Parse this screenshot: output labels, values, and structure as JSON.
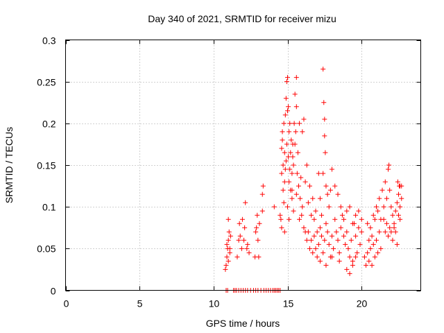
{
  "chart_data": {
    "type": "scatter",
    "title": "Day 340 of 2021, SRMTID for receiver mizu",
    "xlabel": "GPS time / hours",
    "ylabel": "SRMTID / TECUs",
    "xlim": [
      0,
      24
    ],
    "ylim": [
      0,
      0.3
    ],
    "xticks": [
      0,
      5,
      10,
      15,
      20
    ],
    "xtick_labels": [
      "0",
      "5",
      "10",
      "15",
      "20"
    ],
    "yticks": [
      0,
      0.05,
      0.1,
      0.15,
      0.2,
      0.25,
      0.3
    ],
    "ytick_labels": [
      "0",
      "0.05",
      "0.1",
      "0.15",
      "0.2",
      "0.25",
      "0.3"
    ],
    "grid": true,
    "marker": "+",
    "color": "#ff0000",
    "series": [
      {
        "name": "SRMTID",
        "points": [
          [
            10.8,
            0.025
          ],
          [
            10.85,
            0.03
          ],
          [
            10.9,
            0.04
          ],
          [
            10.95,
            0.05
          ],
          [
            11.0,
            0.06
          ],
          [
            11.0,
            0.085
          ],
          [
            11.05,
            0.07
          ],
          [
            11.1,
            0.045
          ],
          [
            11.15,
            0.065
          ],
          [
            11.0,
            0.035
          ],
          [
            10.9,
            0.055
          ],
          [
            11.1,
            0.05
          ],
          [
            10.85,
            0.0
          ],
          [
            10.95,
            0.0
          ],
          [
            11.35,
            0.0
          ],
          [
            11.45,
            0.0
          ],
          [
            11.55,
            0.0
          ],
          [
            11.7,
            0.0
          ],
          [
            11.85,
            0.0
          ],
          [
            12.0,
            0.0
          ],
          [
            12.15,
            0.0
          ],
          [
            12.3,
            0.0
          ],
          [
            12.5,
            0.0
          ],
          [
            12.7,
            0.0
          ],
          [
            12.85,
            0.0
          ],
          [
            13.0,
            0.0
          ],
          [
            13.2,
            0.0
          ],
          [
            13.4,
            0.0
          ],
          [
            13.55,
            0.0
          ],
          [
            13.7,
            0.0
          ],
          [
            13.85,
            0.0
          ],
          [
            14.0,
            0.0
          ],
          [
            14.1,
            0.0
          ],
          [
            14.2,
            0.0
          ],
          [
            14.3,
            0.0
          ],
          [
            14.4,
            0.0
          ],
          [
            14.5,
            0.0
          ],
          [
            11.6,
            0.04
          ],
          [
            11.7,
            0.06
          ],
          [
            11.75,
            0.08
          ],
          [
            11.8,
            0.065
          ],
          [
            11.9,
            0.05
          ],
          [
            11.95,
            0.085
          ],
          [
            12.05,
            0.06
          ],
          [
            12.1,
            0.075
          ],
          [
            12.15,
            0.105
          ],
          [
            12.25,
            0.05
          ],
          [
            12.3,
            0.055
          ],
          [
            12.4,
            0.045
          ],
          [
            12.8,
            0.04
          ],
          [
            12.85,
            0.07
          ],
          [
            12.9,
            0.075
          ],
          [
            12.95,
            0.09
          ],
          [
            13.0,
            0.06
          ],
          [
            13.05,
            0.04
          ],
          [
            13.1,
            0.08
          ],
          [
            13.3,
            0.115
          ],
          [
            13.35,
            0.125
          ],
          [
            13.3,
            0.095
          ],
          [
            14.1,
            0.1
          ],
          [
            14.5,
            0.09
          ],
          [
            14.55,
            0.085
          ],
          [
            14.6,
            0.14
          ],
          [
            14.6,
            0.17
          ],
          [
            14.65,
            0.18
          ],
          [
            14.65,
            0.19
          ],
          [
            14.7,
            0.12
          ],
          [
            14.7,
            0.15
          ],
          [
            14.75,
            0.105
          ],
          [
            14.75,
            0.2
          ],
          [
            14.8,
            0.13
          ],
          [
            14.8,
            0.165
          ],
          [
            14.85,
            0.21
          ],
          [
            14.85,
            0.145
          ],
          [
            14.9,
            0.23
          ],
          [
            14.9,
            0.155
          ],
          [
            14.95,
            0.25
          ],
          [
            14.95,
            0.175
          ],
          [
            15.0,
            0.255
          ],
          [
            15.0,
            0.215
          ],
          [
            15.05,
            0.22
          ],
          [
            15.05,
            0.16
          ],
          [
            15.1,
            0.13
          ],
          [
            15.1,
            0.19
          ],
          [
            15.15,
            0.2
          ],
          [
            15.15,
            0.145
          ],
          [
            15.2,
            0.165
          ],
          [
            15.2,
            0.12
          ],
          [
            15.25,
            0.18
          ],
          [
            15.3,
            0.14
          ],
          [
            15.3,
            0.11
          ],
          [
            15.35,
            0.16
          ],
          [
            15.35,
            0.175
          ],
          [
            15.4,
            0.15
          ],
          [
            15.45,
            0.2
          ],
          [
            15.5,
            0.235
          ],
          [
            15.5,
            0.175
          ],
          [
            15.55,
            0.19
          ],
          [
            15.6,
            0.255
          ],
          [
            15.6,
            0.22
          ],
          [
            15.65,
            0.14
          ],
          [
            15.7,
            0.165
          ],
          [
            15.75,
            0.125
          ],
          [
            15.8,
            0.2
          ],
          [
            15.85,
            0.11
          ],
          [
            15.9,
            0.135
          ],
          [
            15.95,
            0.09
          ],
          [
            14.6,
            0.075
          ],
          [
            14.8,
            0.07
          ],
          [
            15.0,
            0.1
          ],
          [
            15.1,
            0.085
          ],
          [
            15.3,
            0.12
          ],
          [
            15.4,
            0.095
          ],
          [
            15.6,
            0.115
          ],
          [
            15.8,
            0.085
          ],
          [
            16.0,
            0.1
          ],
          [
            16.1,
            0.075
          ],
          [
            16.2,
            0.07
          ],
          [
            16.3,
            0.06
          ],
          [
            16.4,
            0.07
          ],
          [
            16.5,
            0.05
          ],
          [
            16.0,
            0.19
          ],
          [
            16.1,
            0.205
          ],
          [
            16.2,
            0.13
          ],
          [
            16.3,
            0.15
          ],
          [
            16.4,
            0.105
          ],
          [
            16.5,
            0.125
          ],
          [
            16.6,
            0.09
          ],
          [
            16.7,
            0.11
          ],
          [
            16.8,
            0.085
          ],
          [
            16.9,
            0.095
          ],
          [
            17.0,
            0.07
          ],
          [
            17.1,
            0.14
          ],
          [
            17.2,
            0.11
          ],
          [
            17.3,
            0.09
          ],
          [
            17.4,
            0.265
          ],
          [
            17.45,
            0.225
          ],
          [
            17.5,
            0.205
          ],
          [
            17.5,
            0.185
          ],
          [
            17.55,
            0.165
          ],
          [
            17.4,
            0.14
          ],
          [
            17.6,
            0.125
          ],
          [
            17.7,
            0.115
          ],
          [
            17.8,
            0.1
          ],
          [
            17.9,
            0.12
          ],
          [
            18.0,
            0.145
          ],
          [
            16.6,
            0.06
          ],
          [
            16.7,
            0.045
          ],
          [
            16.8,
            0.065
          ],
          [
            16.9,
            0.05
          ],
          [
            17.0,
            0.04
          ],
          [
            17.1,
            0.055
          ],
          [
            17.2,
            0.075
          ],
          [
            17.3,
            0.065
          ],
          [
            17.4,
            0.045
          ],
          [
            17.5,
            0.06
          ],
          [
            17.6,
            0.08
          ],
          [
            17.7,
            0.07
          ],
          [
            17.8,
            0.055
          ],
          [
            17.9,
            0.04
          ],
          [
            18.0,
            0.065
          ],
          [
            18.1,
            0.05
          ],
          [
            18.2,
            0.085
          ],
          [
            18.3,
            0.07
          ],
          [
            18.4,
            0.06
          ],
          [
            18.5,
            0.045
          ],
          [
            18.6,
            0.075
          ],
          [
            18.7,
            0.09
          ],
          [
            18.8,
            0.065
          ],
          [
            18.9,
            0.055
          ],
          [
            19.0,
            0.07
          ],
          [
            19.1,
            0.05
          ],
          [
            19.2,
            0.04
          ],
          [
            19.3,
            0.06
          ],
          [
            19.4,
            0.035
          ],
          [
            19.5,
            0.08
          ],
          [
            19.6,
            0.065
          ],
          [
            19.7,
            0.045
          ],
          [
            19.8,
            0.075
          ],
          [
            19.9,
            0.055
          ],
          [
            20.0,
            0.07
          ],
          [
            18.2,
            0.125
          ],
          [
            18.4,
            0.115
          ],
          [
            18.6,
            0.1
          ],
          [
            18.8,
            0.085
          ],
          [
            19.0,
            0.095
          ],
          [
            19.2,
            0.1
          ],
          [
            19.4,
            0.08
          ],
          [
            19.6,
            0.09
          ],
          [
            19.8,
            0.095
          ],
          [
            20.0,
            0.085
          ],
          [
            17.2,
            0.035
          ],
          [
            17.6,
            0.03
          ],
          [
            18.0,
            0.04
          ],
          [
            18.5,
            0.035
          ],
          [
            19.0,
            0.025
          ],
          [
            19.2,
            0.02
          ],
          [
            19.4,
            0.03
          ],
          [
            19.6,
            0.04
          ],
          [
            20.2,
            0.04
          ],
          [
            20.3,
            0.03
          ],
          [
            20.4,
            0.045
          ],
          [
            20.5,
            0.035
          ],
          [
            20.6,
            0.05
          ],
          [
            20.7,
            0.03
          ],
          [
            20.8,
            0.055
          ],
          [
            20.9,
            0.04
          ],
          [
            21.0,
            0.06
          ],
          [
            21.1,
            0.045
          ],
          [
            21.2,
            0.07
          ],
          [
            21.3,
            0.05
          ],
          [
            20.4,
            0.08
          ],
          [
            20.5,
            0.06
          ],
          [
            20.6,
            0.075
          ],
          [
            20.7,
            0.065
          ],
          [
            20.8,
            0.09
          ],
          [
            20.9,
            0.085
          ],
          [
            21.0,
            0.1
          ],
          [
            21.1,
            0.095
          ],
          [
            21.2,
            0.11
          ],
          [
            21.3,
            0.085
          ],
          [
            21.4,
            0.12
          ],
          [
            21.5,
            0.1
          ],
          [
            21.6,
            0.13
          ],
          [
            21.7,
            0.11
          ],
          [
            21.8,
            0.145
          ],
          [
            21.85,
            0.15
          ],
          [
            21.9,
            0.12
          ],
          [
            22.0,
            0.1
          ],
          [
            22.1,
            0.09
          ],
          [
            22.2,
            0.08
          ],
          [
            22.3,
            0.095
          ],
          [
            22.4,
            0.105
          ],
          [
            22.5,
            0.115
          ],
          [
            22.6,
            0.125
          ],
          [
            22.7,
            0.11
          ],
          [
            21.5,
            0.085
          ],
          [
            21.6,
            0.07
          ],
          [
            21.7,
            0.08
          ],
          [
            21.8,
            0.065
          ],
          [
            21.9,
            0.075
          ],
          [
            22.0,
            0.07
          ],
          [
            22.1,
            0.06
          ],
          [
            22.2,
            0.075
          ],
          [
            22.3,
            0.07
          ],
          [
            22.4,
            0.055
          ],
          [
            22.5,
            0.09
          ],
          [
            22.6,
            0.085
          ],
          [
            22.45,
            0.13
          ],
          [
            22.55,
            0.125
          ],
          [
            22.7,
            0.125
          ],
          [
            22.6,
            0.1
          ]
        ]
      }
    ]
  }
}
